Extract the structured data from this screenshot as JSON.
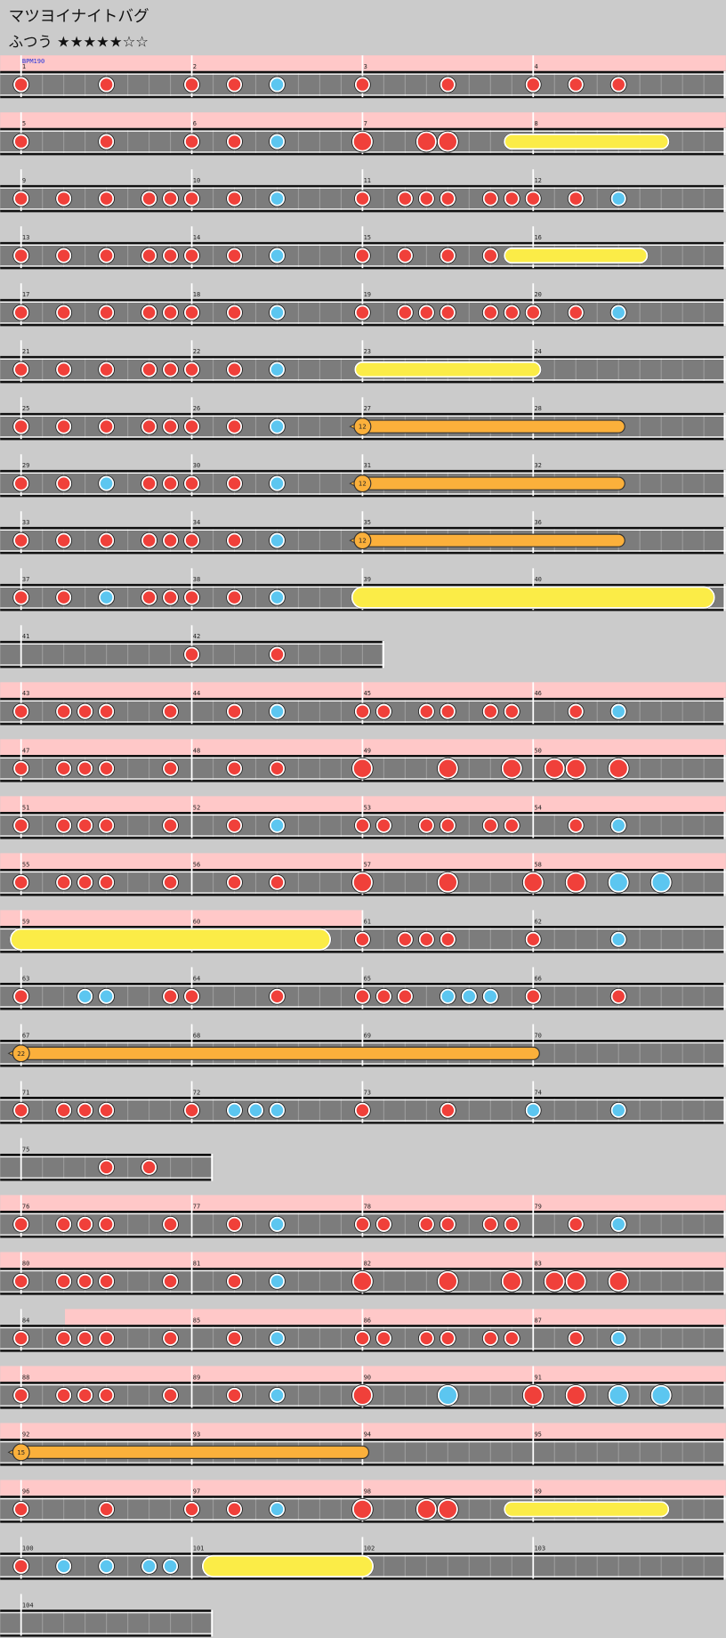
{
  "title": "マツヨイナイトバグ",
  "difficulty": "ふつう ★★★★★☆☆",
  "bpm": "BPM190",
  "rows": [
    {
      "measures": [
        1,
        2,
        3,
        4
      ]
    },
    {
      "measures": [
        5,
        6,
        7,
        8
      ]
    },
    {
      "measures": [
        9,
        10,
        11,
        12
      ]
    },
    {
      "measures": [
        13,
        14,
        15,
        16
      ]
    },
    {
      "measures": [
        17,
        18,
        19,
        20
      ]
    },
    {
      "measures": [
        21,
        22,
        23,
        24
      ]
    },
    {
      "measures": [
        25,
        26,
        27,
        28
      ],
      "balloon": 12
    },
    {
      "measures": [
        29,
        30,
        31,
        32
      ],
      "balloon": 12
    },
    {
      "measures": [
        33,
        34,
        35,
        36
      ],
      "balloon": 12
    },
    {
      "measures": [
        37,
        38,
        39,
        40
      ]
    },
    {
      "measures": [
        41,
        42
      ]
    },
    {
      "measures": [
        43,
        44,
        45,
        46
      ]
    },
    {
      "measures": [
        47,
        48,
        49,
        50
      ]
    },
    {
      "measures": [
        51,
        52,
        53,
        54
      ]
    },
    {
      "measures": [
        55,
        56,
        57,
        58
      ]
    },
    {
      "measures": [
        59,
        60,
        61,
        62
      ]
    },
    {
      "measures": [
        63,
        64,
        65,
        66
      ]
    },
    {
      "measures": [
        67,
        68,
        69,
        70
      ],
      "balloon": 22
    },
    {
      "measures": [
        71,
        72,
        73,
        74
      ]
    },
    {
      "measures": [
        75
      ]
    },
    {
      "measures": [
        76,
        77,
        78,
        79
      ]
    },
    {
      "measures": [
        80,
        81,
        82,
        83
      ]
    },
    {
      "measures": [
        84,
        85,
        86,
        87
      ]
    },
    {
      "measures": [
        88,
        89,
        90,
        91
      ]
    },
    {
      "measures": [
        92,
        93,
        94,
        95
      ],
      "balloon": 15
    },
    {
      "measures": [
        96,
        97,
        98,
        99
      ]
    },
    {
      "measures": [
        100,
        101,
        102,
        103
      ]
    },
    {
      "measures": [
        104
      ]
    }
  ]
}
